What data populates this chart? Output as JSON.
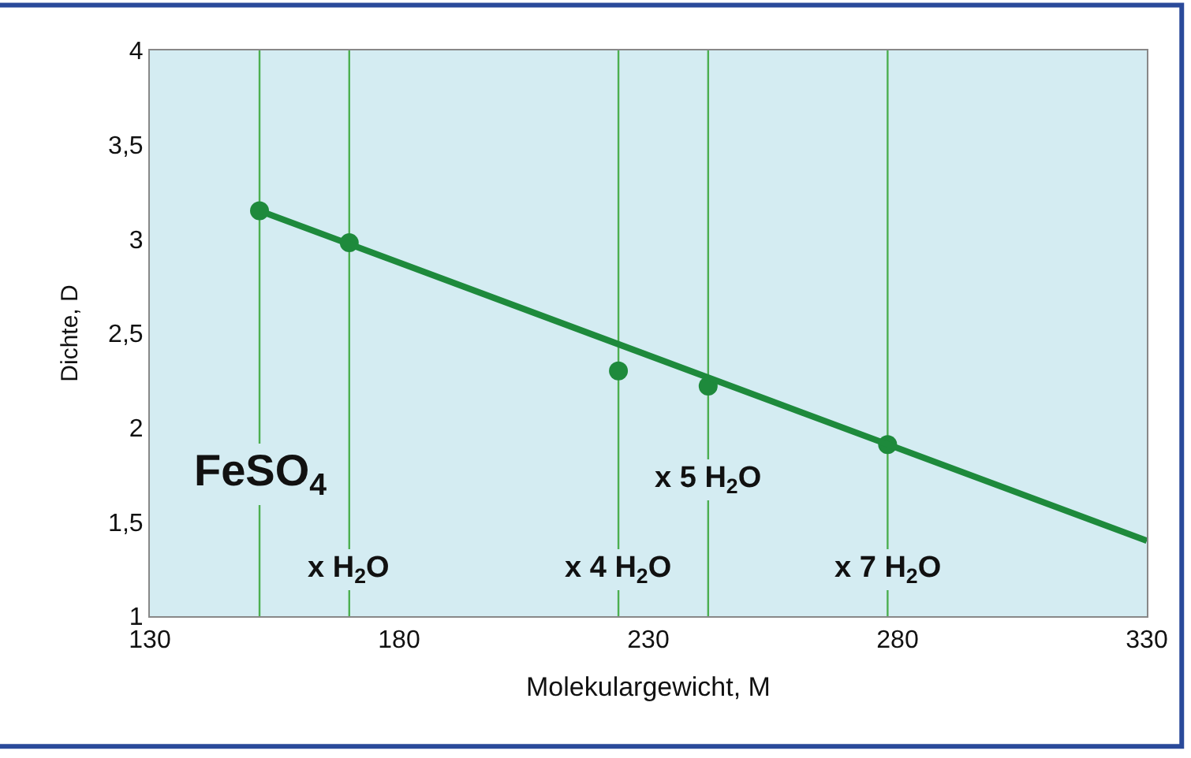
{
  "chart_data": {
    "type": "scatter",
    "xlabel": "Molekulargewicht, M",
    "ylabel": "Dichte, D",
    "series": [
      {
        "color": "#1e8a3c",
        "marker": "circle",
        "x": [
          152,
          170,
          224,
          242,
          278
        ],
        "values": [
          3.15,
          2.98,
          2.3,
          2.22,
          1.91
        ]
      },
      {
        "type": "line",
        "marker": "none",
        "color": "#1e8a3c",
        "x": [
          152,
          330
        ],
        "values": [
          3.15,
          1.4
        ]
      }
    ],
    "xlim": [
      130,
      330
    ],
    "xticks": [
      130,
      180,
      230,
      280,
      330
    ],
    "ylim": [
      1,
      4
    ],
    "yticks": [
      1,
      {
        "value": 1.5,
        "label": "1,5"
      },
      2,
      {
        "value": 2.5,
        "label": "2,5"
      },
      3,
      {
        "value": 3.5,
        "label": "3,5"
      },
      4
    ],
    "ref_lines": [
      {
        "axis": "x",
        "value": 152,
        "color": "#4caf50"
      },
      {
        "axis": "x",
        "value": 170,
        "color": "#4caf50"
      },
      {
        "axis": "x",
        "value": 224,
        "color": "#4caf50"
      },
      {
        "axis": "x",
        "value": 242,
        "color": "#4caf50"
      },
      {
        "axis": "x",
        "value": 278,
        "color": "#4caf50"
      }
    ],
    "annotations": [
      {
        "text": "FeSO$_{4}$",
        "x": 152,
        "y": 1.75
      },
      {
        "text": "x H$_{2}$O",
        "x": 170,
        "y": 1.25
      },
      {
        "text": "x 4 H$_{2}$O",
        "x": 224,
        "y": 1.25
      },
      {
        "text": "x 5 H$_{2}$O",
        "x": 242,
        "y": 1.72
      },
      {
        "text": "x 7 H$_{2}$O",
        "x": 278,
        "y": 1.25
      }
    ],
    "grid": false,
    "legend": false
  }
}
